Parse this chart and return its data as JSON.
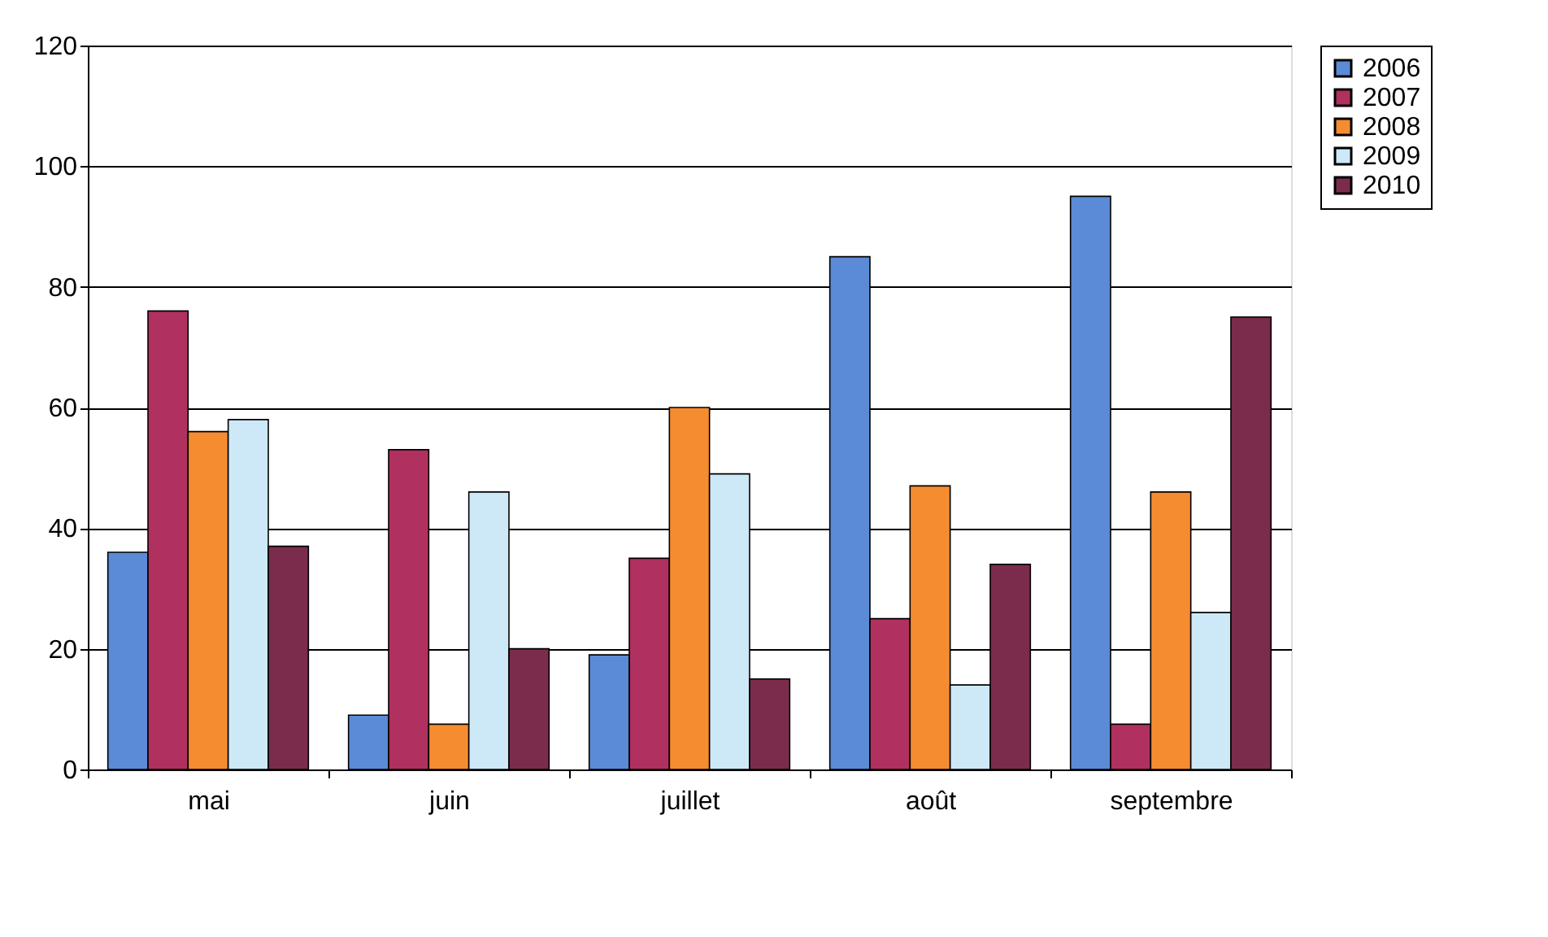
{
  "chart_data": {
    "type": "bar",
    "categories": [
      "mai",
      "juin",
      "juillet",
      "août",
      "septembre"
    ],
    "series": [
      {
        "name": "2006",
        "color": "#5b8bd6",
        "values": [
          36,
          9,
          19,
          85,
          95
        ]
      },
      {
        "name": "2007",
        "color": "#b03060",
        "values": [
          76,
          53,
          35,
          25,
          7.5
        ]
      },
      {
        "name": "2008",
        "color": "#f68c30",
        "values": [
          56,
          7.5,
          60,
          47,
          46
        ]
      },
      {
        "name": "2009",
        "color": "#cde9f8",
        "values": [
          58,
          46,
          49,
          14,
          26
        ]
      },
      {
        "name": "2010",
        "color": "#7b2c4c",
        "values": [
          37,
          20,
          15,
          34,
          75
        ]
      }
    ],
    "ylim": [
      0,
      120
    ],
    "yticks": [
      0,
      20,
      40,
      60,
      80,
      100,
      120
    ],
    "grid": "y",
    "legend": "right"
  }
}
